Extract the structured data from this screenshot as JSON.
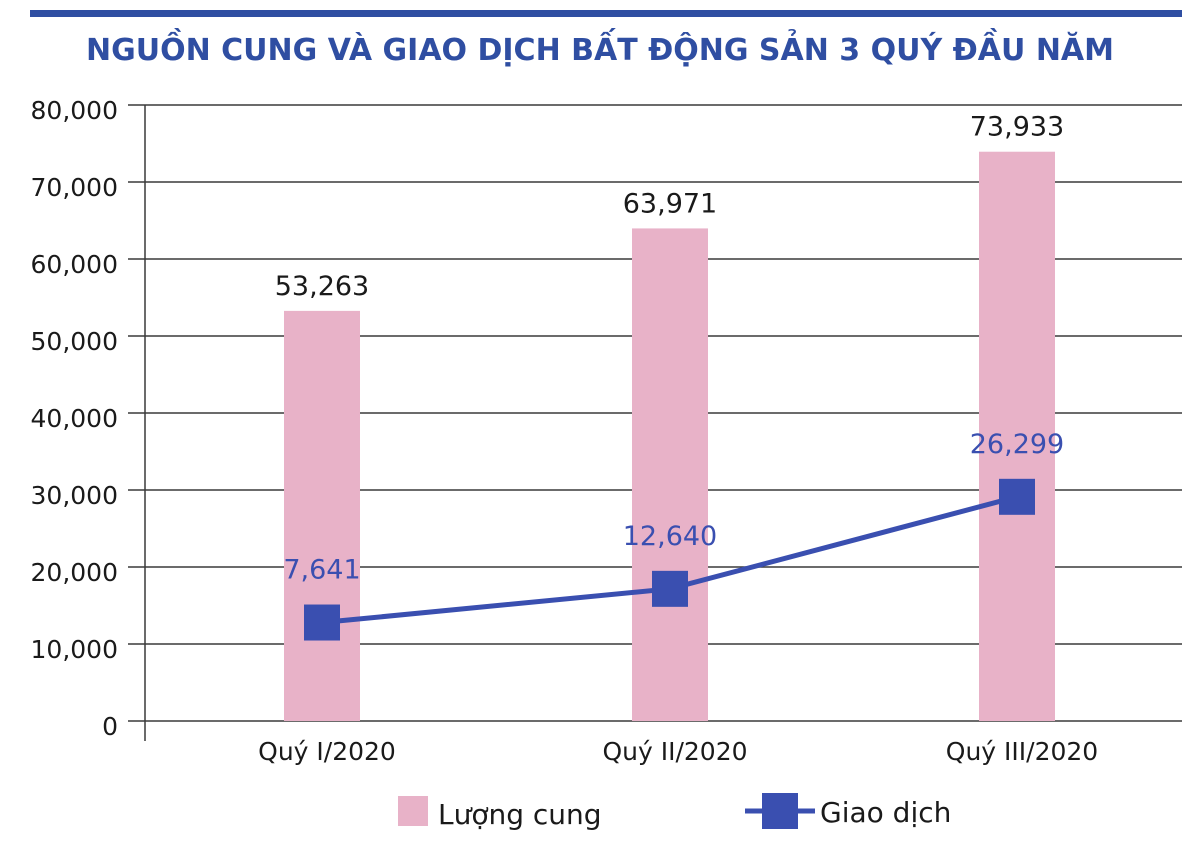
{
  "chart_data": {
    "type": "bar",
    "title": "NGUỒN CUNG VÀ GIAO DỊCH BẤT ĐỘNG SẢN 3 QUÝ ĐẦU NĂM",
    "categories": [
      "Quý I/2020",
      "Quý II/2020",
      "Quý III/2020"
    ],
    "y_tick_labels": [
      "80,000",
      "70,000",
      "60,000",
      "50,000",
      "40,000",
      "30,000",
      "20,000",
      "10,000",
      "0"
    ],
    "ylim": [
      0,
      80000
    ],
    "grid": true,
    "legend_position": "bottom",
    "series": [
      {
        "name": "Lượng cung",
        "kind": "bar",
        "color": "#e8b2c8",
        "values": [
          53263,
          63971,
          73933
        ],
        "labels": [
          "53,263",
          "63,971",
          "73,933"
        ]
      },
      {
        "name": "Giao dịch",
        "kind": "line",
        "color": "#3a4fb0",
        "values": [
          7641,
          12640,
          26299
        ],
        "labels": [
          "7,641",
          "12,640",
          "26,299"
        ]
      }
    ],
    "colors": {
      "title": "#2f4ea2",
      "grid": "#3a3a3a",
      "top_rule": "#2f4ea2"
    }
  }
}
